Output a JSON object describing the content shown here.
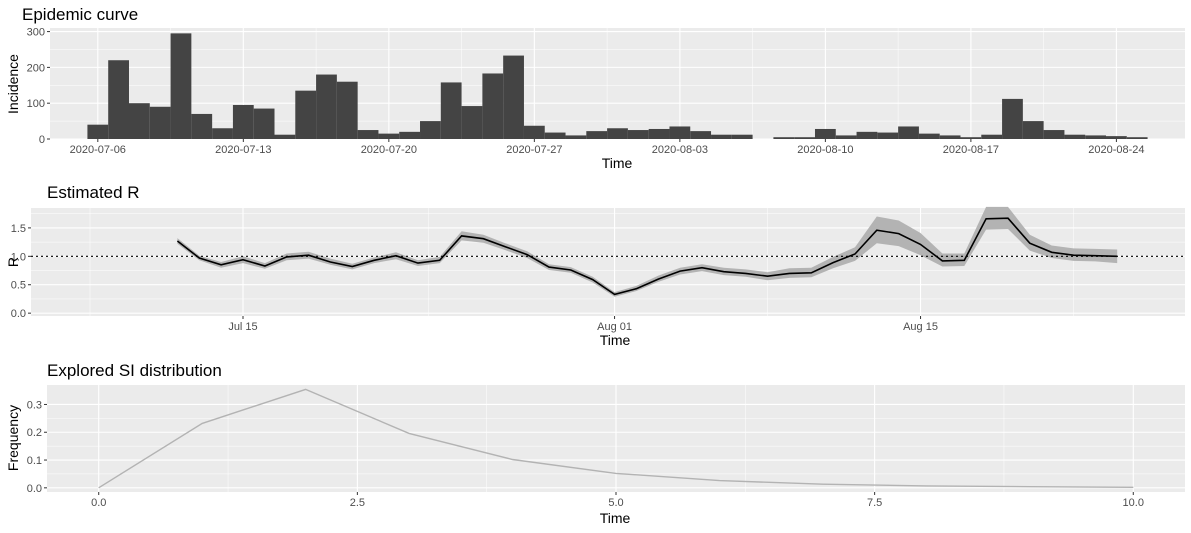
{
  "chart_data": [
    {
      "type": "bar",
      "title": "Epidemic curve",
      "xlabel": "Time",
      "ylabel": "Incidence",
      "ylim": [
        0,
        310
      ],
      "y_ticks": [
        0,
        100,
        200,
        300
      ],
      "x_tick_labels": [
        "2020-07-06",
        "2020-07-13",
        "2020-07-20",
        "2020-07-27",
        "2020-08-03",
        "2020-08-10",
        "2020-08-17",
        "2020-08-24"
      ],
      "bar_color": "#444444",
      "grid": true,
      "categories": [
        "2020-07-06",
        "2020-07-07",
        "2020-07-08",
        "2020-07-09",
        "2020-07-10",
        "2020-07-11",
        "2020-07-12",
        "2020-07-13",
        "2020-07-14",
        "2020-07-15",
        "2020-07-16",
        "2020-07-17",
        "2020-07-18",
        "2020-07-19",
        "2020-07-20",
        "2020-07-21",
        "2020-07-22",
        "2020-07-23",
        "2020-07-24",
        "2020-07-25",
        "2020-07-26",
        "2020-07-27",
        "2020-07-28",
        "2020-07-29",
        "2020-07-30",
        "2020-07-31",
        "2020-08-01",
        "2020-08-02",
        "2020-08-03",
        "2020-08-04",
        "2020-08-05",
        "2020-08-06",
        "2020-08-07",
        "2020-08-08",
        "2020-08-09",
        "2020-08-10",
        "2020-08-11",
        "2020-08-12",
        "2020-08-13",
        "2020-08-14",
        "2020-08-15",
        "2020-08-16",
        "2020-08-17",
        "2020-08-18",
        "2020-08-19",
        "2020-08-20",
        "2020-08-21",
        "2020-08-22",
        "2020-08-23",
        "2020-08-24",
        "2020-08-25"
      ],
      "values": [
        40,
        220,
        100,
        90,
        295,
        70,
        30,
        95,
        85,
        12,
        135,
        180,
        160,
        25,
        15,
        20,
        50,
        158,
        92,
        183,
        233,
        37,
        18,
        10,
        22,
        30,
        25,
        28,
        35,
        22,
        12,
        12,
        0,
        5,
        5,
        28,
        10,
        20,
        18,
        35,
        15,
        10,
        5,
        12,
        112,
        50,
        25,
        12,
        10,
        8,
        5
      ]
    },
    {
      "type": "line",
      "title": "Estimated R",
      "xlabel": "Time",
      "ylabel": "R",
      "ylim": [
        -0.05,
        1.85
      ],
      "y_ticks": [
        0.0,
        0.5,
        1.0,
        1.5
      ],
      "y_tick_labels": [
        "0.0",
        "0.5",
        "1.0",
        "1.5"
      ],
      "x_tick_labels": [
        "Jul 15",
        "Aug 01",
        "Aug 15"
      ],
      "reference_line": 1.0,
      "line_color": "#000000",
      "ribbon_color": "#b3b3b3",
      "grid": true,
      "x": [
        "2020-07-12",
        "2020-07-13",
        "2020-07-14",
        "2020-07-15",
        "2020-07-16",
        "2020-07-17",
        "2020-07-18",
        "2020-07-19",
        "2020-07-20",
        "2020-07-21",
        "2020-07-22",
        "2020-07-23",
        "2020-07-24",
        "2020-07-25",
        "2020-07-26",
        "2020-07-27",
        "2020-07-28",
        "2020-07-29",
        "2020-07-30",
        "2020-07-31",
        "2020-08-01",
        "2020-08-02",
        "2020-08-03",
        "2020-08-04",
        "2020-08-05",
        "2020-08-06",
        "2020-08-07",
        "2020-08-08",
        "2020-08-09",
        "2020-08-10",
        "2020-08-11",
        "2020-08-12",
        "2020-08-13",
        "2020-08-14",
        "2020-08-15",
        "2020-08-16",
        "2020-08-17",
        "2020-08-18",
        "2020-08-19",
        "2020-08-20",
        "2020-08-21",
        "2020-08-22",
        "2020-08-23",
        "2020-08-24"
      ],
      "values": [
        1.27,
        0.97,
        0.85,
        0.94,
        0.83,
        0.99,
        1.02,
        0.9,
        0.82,
        0.93,
        1.01,
        0.88,
        0.93,
        1.36,
        1.31,
        1.17,
        1.03,
        0.81,
        0.76,
        0.59,
        0.33,
        0.43,
        0.6,
        0.74,
        0.8,
        0.73,
        0.7,
        0.65,
        0.7,
        0.71,
        0.89,
        1.04,
        1.46,
        1.4,
        1.21,
        0.92,
        0.93,
        1.66,
        1.67,
        1.23,
        1.07,
        1.02,
        1.01,
        1.0
      ],
      "lower": [
        1.22,
        0.93,
        0.8,
        0.88,
        0.78,
        0.93,
        0.96,
        0.85,
        0.77,
        0.88,
        0.95,
        0.83,
        0.88,
        1.28,
        1.24,
        1.11,
        0.97,
        0.76,
        0.71,
        0.54,
        0.29,
        0.39,
        0.55,
        0.68,
        0.74,
        0.67,
        0.64,
        0.58,
        0.62,
        0.63,
        0.79,
        0.92,
        1.23,
        1.18,
        1.02,
        0.82,
        0.83,
        1.47,
        1.48,
        1.1,
        0.97,
        0.92,
        0.91,
        0.88
      ],
      "upper": [
        1.32,
        1.01,
        0.9,
        1.0,
        0.88,
        1.05,
        1.08,
        0.96,
        0.87,
        0.98,
        1.07,
        0.93,
        0.99,
        1.44,
        1.38,
        1.23,
        1.09,
        0.86,
        0.81,
        0.64,
        0.37,
        0.48,
        0.66,
        0.8,
        0.86,
        0.8,
        0.77,
        0.72,
        0.79,
        0.8,
        0.99,
        1.16,
        1.7,
        1.63,
        1.41,
        1.05,
        1.05,
        1.87,
        1.87,
        1.38,
        1.19,
        1.14,
        1.13,
        1.12
      ]
    },
    {
      "type": "line",
      "title": "Explored SI distribution",
      "xlabel": "Time",
      "ylabel": "Frequency",
      "xlim": [
        -0.5,
        10.5
      ],
      "ylim": [
        -0.015,
        0.37
      ],
      "x_ticks": [
        0.0,
        2.5,
        5.0,
        7.5,
        10.0
      ],
      "x_tick_labels": [
        "0.0",
        "2.5",
        "5.0",
        "7.5",
        "10.0"
      ],
      "y_ticks": [
        0.0,
        0.1,
        0.2,
        0.3
      ],
      "y_tick_labels": [
        "0.0",
        "0.1",
        "0.2",
        "0.3"
      ],
      "line_color": "#b3b3b3",
      "grid": true,
      "x": [
        0,
        1,
        2,
        3,
        4,
        5,
        6,
        7,
        8,
        9,
        10
      ],
      "values": [
        0.0,
        0.232,
        0.354,
        0.196,
        0.102,
        0.052,
        0.026,
        0.013,
        0.007,
        0.004,
        0.002
      ]
    }
  ]
}
